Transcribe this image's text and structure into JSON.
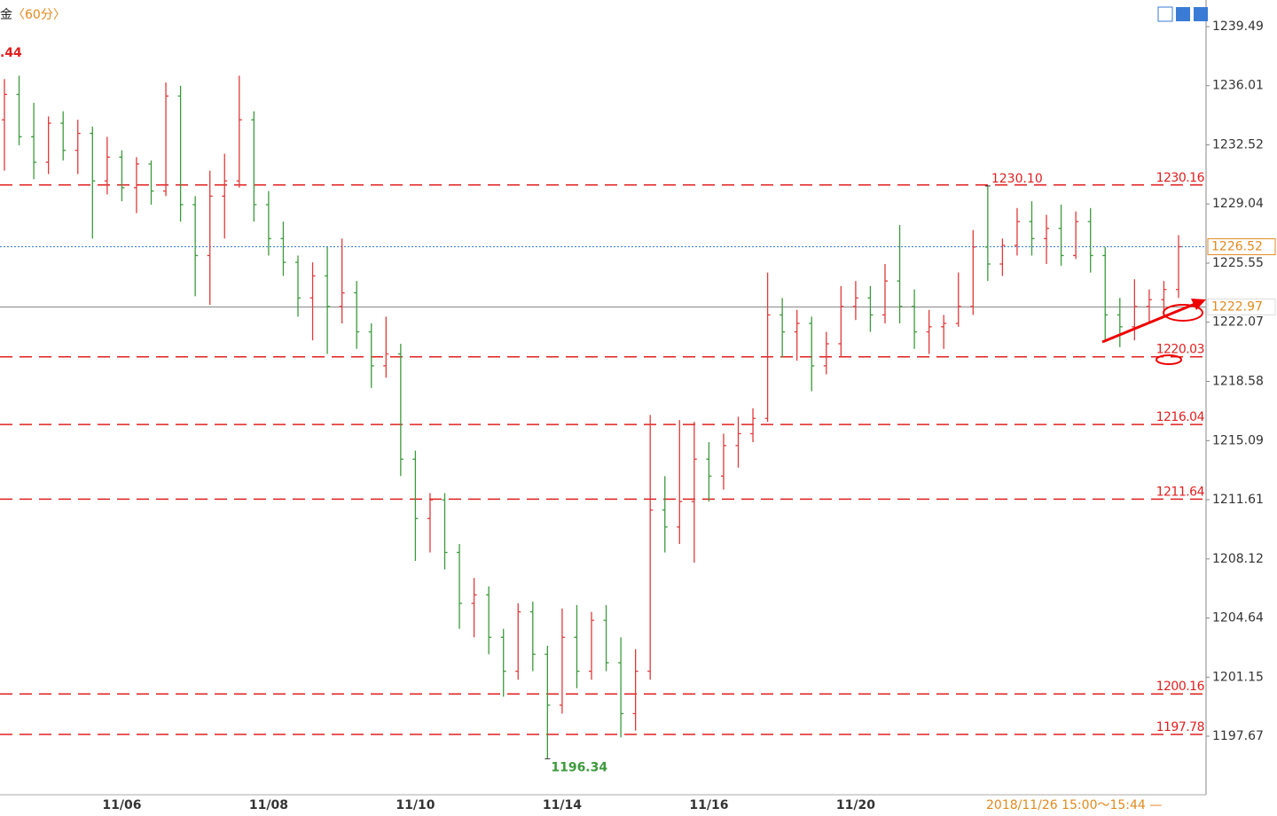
{
  "chart_data": {
    "type": "ohlc",
    "title": "金",
    "period": "〈60分〉",
    "annotations": [
      ".44"
    ],
    "time_range": "2018/11/26 15:00～15:44 —",
    "categories": [
      null,
      null,
      null,
      null,
      null,
      null,
      null,
      null,
      "11/06",
      null,
      null,
      null,
      null,
      null,
      null,
      null,
      null,
      null,
      "11/08",
      null,
      null,
      null,
      null,
      null,
      null,
      null,
      null,
      null,
      "11/10",
      null,
      null,
      null,
      null,
      null,
      null,
      null,
      null,
      null,
      "11/14",
      null,
      null,
      null,
      null,
      null,
      null,
      null,
      null,
      null,
      "11/16",
      null,
      null,
      null,
      null,
      null,
      null,
      null,
      null,
      null,
      "11/20",
      null,
      null,
      null,
      null,
      null,
      null,
      null,
      null,
      null,
      null,
      null,
      null,
      null,
      null,
      null,
      null,
      null,
      null,
      null,
      null,
      null,
      null
    ],
    "open": [
      1234.0,
      1235.5,
      1233.0,
      1231.5,
      1233.8,
      1232.2,
      1233.2,
      1230.4,
      1231.8,
      1230.0,
      1231.4,
      1229.8,
      1235.4,
      1229.0,
      1226.0,
      1229.5,
      1230.4,
      1234.0,
      1229.0,
      1227.0,
      1225.6,
      1223.5,
      1224.8,
      1223.0,
      1223.8,
      1221.5,
      1219.5,
      1220.2,
      1214.0,
      1210.5,
      1211.6,
      1208.5,
      1205.5,
      1206.0,
      1203.5,
      1201.5,
      1205.0,
      1202.5,
      1199.5,
      1203.5,
      1201.5,
      1204.5,
      1202.0,
      1199.0,
      1201.5,
      1211.0,
      1210.0,
      1211.5,
      1214.0,
      1213.0,
      1214.8,
      1215.5,
      1216.4,
      1222.5,
      1221.5,
      1222.0,
      1219.5,
      1220.8,
      1223.0,
      1223.5,
      1222.5,
      1224.5,
      1223.0,
      1221.5,
      1221.8,
      1222.0,
      1223.0,
      1226.5,
      1225.5,
      1226.6,
      1228.0,
      1227.0,
      1227.6,
      1226.0,
      1228.0,
      1226.0,
      1222.5,
      1221.8,
      1223.0,
      1223.4,
      1224.0
    ],
    "high": [
      1236.4,
      1236.6,
      1235.0,
      1234.2,
      1234.5,
      1234.0,
      1233.6,
      1233.0,
      1232.2,
      1231.8,
      1231.6,
      1236.2,
      1236.0,
      1229.5,
      1231.0,
      1232.0,
      1236.6,
      1234.5,
      1229.8,
      1228.0,
      1226.0,
      1225.6,
      1226.5,
      1227.0,
      1224.5,
      1222.0,
      1222.4,
      1220.8,
      1214.5,
      1212.0,
      1212.0,
      1209.0,
      1207.0,
      1206.5,
      1204.0,
      1205.5,
      1205.6,
      1203.0,
      1205.2,
      1205.4,
      1205.0,
      1205.4,
      1203.5,
      1202.8,
      1216.6,
      1213.0,
      1216.3,
      1216.2,
      1215.0,
      1215.5,
      1216.5,
      1217.0,
      1225.0,
      1223.5,
      1222.8,
      1222.4,
      1221.5,
      1224.2,
      1224.5,
      1224.2,
      1225.5,
      1227.8,
      1224.0,
      1222.8,
      1222.5,
      1225.0,
      1227.5,
      1230.1,
      1227.0,
      1228.8,
      1229.2,
      1228.4,
      1229.0,
      1228.6,
      1228.8,
      1226.5,
      1223.5,
      1224.6,
      1224.0,
      1224.5,
      1227.2
    ],
    "low": [
      1231.0,
      1232.5,
      1230.5,
      1230.8,
      1231.6,
      1230.8,
      1227.0,
      1229.6,
      1229.2,
      1228.5,
      1229.0,
      1229.5,
      1228.0,
      1223.6,
      1223.1,
      1227.0,
      1230.0,
      1228.0,
      1226.0,
      1224.8,
      1222.4,
      1221.0,
      1220.2,
      1222.0,
      1220.5,
      1218.2,
      1218.8,
      1213.0,
      1208.0,
      1208.5,
      1207.5,
      1204.0,
      1203.5,
      1202.5,
      1200.0,
      1201.0,
      1201.5,
      1196.34,
      1199.0,
      1200.5,
      1201.0,
      1201.5,
      1197.6,
      1198.0,
      1201.0,
      1208.5,
      1209.0,
      1207.9,
      1211.5,
      1212.2,
      1213.5,
      1215.0,
      1216.2,
      1220.0,
      1219.8,
      1218.0,
      1219.0,
      1220.0,
      1222.2,
      1221.5,
      1222.0,
      1222.0,
      1220.5,
      1220.2,
      1220.5,
      1221.8,
      1222.5,
      1224.5,
      1224.8,
      1226.0,
      1226.0,
      1225.5,
      1225.4,
      1225.8,
      1225.0,
      1221.0,
      1220.6,
      1221.0,
      1222.0,
      1222.5,
      1223.5
    ],
    "close": [
      1235.5,
      1233.0,
      1231.5,
      1233.8,
      1232.2,
      1233.2,
      1230.4,
      1231.8,
      1230.0,
      1231.4,
      1229.8,
      1235.4,
      1229.0,
      1226.0,
      1229.5,
      1230.4,
      1234.0,
      1229.0,
      1227.0,
      1225.6,
      1223.5,
      1224.8,
      1223.0,
      1223.8,
      1221.5,
      1219.5,
      1220.2,
      1214.0,
      1210.5,
      1211.6,
      1208.5,
      1205.5,
      1206.0,
      1203.5,
      1201.5,
      1205.0,
      1202.5,
      1199.5,
      1203.5,
      1201.5,
      1204.5,
      1202.0,
      1199.0,
      1201.5,
      1211.0,
      1210.0,
      1211.5,
      1214.0,
      1213.0,
      1214.8,
      1215.5,
      1216.4,
      1222.5,
      1221.5,
      1222.0,
      1219.5,
      1220.8,
      1223.0,
      1223.5,
      1222.5,
      1224.5,
      1223.0,
      1221.5,
      1221.8,
      1222.0,
      1223.0,
      1226.5,
      1225.5,
      1226.6,
      1228.0,
      1227.0,
      1227.6,
      1226.0,
      1228.0,
      1226.0,
      1222.5,
      1221.8,
      1223.0,
      1223.4,
      1224.0,
      1226.52
    ],
    "up_color": "#e03a3a",
    "down_color": "#3c9a3c",
    "ylim": [
      1194.22,
      1240.8
    ],
    "yticks": [
      1239.49,
      1236.01,
      1232.52,
      1229.04,
      1225.55,
      1222.07,
      1218.58,
      1215.09,
      1211.61,
      1208.12,
      1204.64,
      1201.15,
      1197.67
    ],
    "levels": [
      1230.16,
      1220.03,
      1216.04,
      1211.64,
      1200.16,
      1197.78
    ],
    "level_color": "#e02020",
    "last_price": 1226.52,
    "crosshair_price": 1222.97,
    "high_label": {
      "value": 1230.1,
      "label": "1230.10"
    },
    "low_label": 1196.34
  }
}
